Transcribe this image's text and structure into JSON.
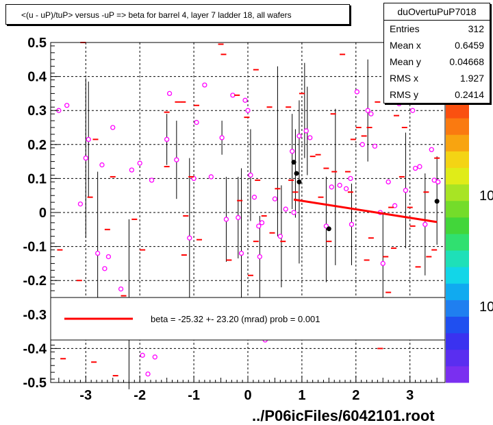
{
  "title": "<(u - uP)/tuP> versus  -uP => beta for barrel 4, layer 7 ladder 18, all wafers",
  "stats": {
    "name": "duOvertuPuP7018",
    "rows": [
      {
        "label": "Entries",
        "value": "312"
      },
      {
        "label": "Mean x",
        "value": "0.6459"
      },
      {
        "label": "Mean y",
        "value": "0.04668"
      },
      {
        "label": "RMS x",
        "value": "1.927"
      },
      {
        "label": "RMS y",
        "value": "0.2414"
      }
    ]
  },
  "footer": "../P06icFiles/6042101.root",
  "legend": {
    "text": "beta =  -25.32 +- 23.20 (mrad) prob = 0.001",
    "line_color": "#ff0000"
  },
  "palette_labels": [
    "10",
    "10"
  ],
  "colors": {
    "marker": "#ff00ff",
    "dash": "#ff0000",
    "profile": "#000000",
    "fit": "#ff0000"
  },
  "chart_data": {
    "type": "scatter",
    "xlim": [
      -3.65,
      3.65
    ],
    "ylim": [
      -0.5,
      0.5
    ],
    "x_ticks": [
      -3,
      -2,
      -1,
      0,
      1,
      2,
      3
    ],
    "x_tick_labels": [
      "-3",
      "-2",
      "-1",
      "0",
      "1",
      "2",
      "3"
    ],
    "y_ticks": [
      -0.5,
      -0.4,
      -0.3,
      -0.2,
      -0.1,
      0,
      0.1,
      0.2,
      0.3,
      0.4,
      0.5
    ],
    "y_tick_labels": [
      "-0.5",
      "-0.4",
      "-0.3",
      "-0.2",
      "-0.1",
      "0",
      "0.1",
      "0.2",
      "0.3",
      "0.4",
      "0.5"
    ],
    "grid": true,
    "fit_line": {
      "x": [
        0.85,
        3.5
      ],
      "y": [
        0.038,
        -0.028
      ]
    },
    "series": [
      {
        "kind": "circles",
        "points": [
          [
            -3.5,
            0.3
          ],
          [
            -3.35,
            0.315
          ],
          [
            -3.1,
            0.025
          ],
          [
            -3.0,
            0.16
          ],
          [
            -2.95,
            0.215
          ],
          [
            -2.78,
            -0.12
          ],
          [
            -2.7,
            0.14
          ],
          [
            -2.65,
            -0.165
          ],
          [
            -2.58,
            -0.13
          ],
          [
            -2.5,
            0.25
          ],
          [
            -2.35,
            -0.225
          ],
          [
            -2.15,
            0.125
          ],
          [
            -2.0,
            0.145
          ],
          [
            -1.95,
            -0.42
          ],
          [
            -1.85,
            -0.475
          ],
          [
            -1.78,
            0.095
          ],
          [
            -1.72,
            -0.425
          ],
          [
            -1.5,
            0.215
          ],
          [
            -1.45,
            0.35
          ],
          [
            -1.32,
            0.155
          ],
          [
            -1.08,
            -0.075
          ],
          [
            -1.0,
            0.1
          ],
          [
            -0.95,
            0.265
          ],
          [
            -0.8,
            0.375
          ],
          [
            -0.68,
            0.105
          ],
          [
            -0.48,
            0.22
          ],
          [
            -0.4,
            -0.02
          ],
          [
            -0.28,
            0.345
          ],
          [
            -0.18,
            -0.015
          ],
          [
            -0.12,
            -0.12
          ],
          [
            -0.05,
            0.33
          ],
          [
            0.0,
            0.3
          ],
          [
            0.05,
            0.11
          ],
          [
            0.12,
            0.045
          ],
          [
            0.2,
            -0.04
          ],
          [
            0.22,
            -0.13
          ],
          [
            0.26,
            -0.03
          ],
          [
            0.32,
            -0.375
          ],
          [
            0.5,
            0.04
          ],
          [
            0.6,
            -0.07
          ],
          [
            0.7,
            0.01
          ],
          [
            0.82,
            0.18
          ],
          [
            0.85,
            0.0
          ],
          [
            0.95,
            0.225
          ],
          [
            1.08,
            0.24
          ],
          [
            1.15,
            0.22
          ],
          [
            1.45,
            -0.04
          ],
          [
            1.55,
            0.075
          ],
          [
            1.7,
            0.08
          ],
          [
            1.82,
            0.07
          ],
          [
            1.9,
            0.1
          ],
          [
            1.92,
            -0.035
          ],
          [
            2.02,
            0.355
          ],
          [
            2.12,
            0.2
          ],
          [
            2.22,
            0.3
          ],
          [
            2.28,
            0.29
          ],
          [
            2.35,
            0.195
          ],
          [
            2.45,
            0.0
          ],
          [
            2.5,
            -0.15
          ],
          [
            2.6,
            0.09
          ],
          [
            2.72,
            0.02
          ],
          [
            2.8,
            0.32
          ],
          [
            2.92,
            0.065
          ],
          [
            3.05,
            0.3
          ],
          [
            3.1,
            0.13
          ],
          [
            3.18,
            0.135
          ],
          [
            3.28,
            -0.035
          ],
          [
            3.4,
            0.185
          ],
          [
            3.45,
            0.095
          ],
          [
            3.52,
            0.09
          ]
        ]
      },
      {
        "kind": "dashes",
        "points": [
          [
            -3.48,
            -0.11
          ],
          [
            -3.42,
            -0.43
          ],
          [
            -3.12,
            -0.2
          ],
          [
            -3.05,
            0.5
          ],
          [
            -2.92,
            0.045
          ],
          [
            -2.85,
            -0.44
          ],
          [
            -2.82,
            0.215
          ],
          [
            -2.6,
            -0.05
          ],
          [
            -2.5,
            0.105
          ],
          [
            -2.45,
            -0.48
          ],
          [
            -2.3,
            -0.245
          ],
          [
            -2.1,
            -0.02
          ],
          [
            -1.95,
            -0.11
          ],
          [
            -1.9,
            -0.355
          ],
          [
            -1.5,
            0.135
          ],
          [
            -1.5,
            0.295
          ],
          [
            -1.3,
            0.325
          ],
          [
            -1.2,
            0.325
          ],
          [
            -1.18,
            -0.125
          ],
          [
            -1.15,
            -0.01
          ],
          [
            -1.05,
            0.105
          ],
          [
            -0.95,
            0.315
          ],
          [
            -0.9,
            -0.08
          ],
          [
            -0.5,
            0.495
          ],
          [
            -0.45,
            0.465
          ],
          [
            -0.35,
            -0.14
          ],
          [
            -0.2,
            0.345
          ],
          [
            -0.15,
            0.035
          ],
          [
            -0.12,
            -0.36
          ],
          [
            -0.02,
            0.28
          ],
          [
            0.05,
            -0.185
          ],
          [
            0.15,
            -0.085
          ],
          [
            0.15,
            0.42
          ],
          [
            0.18,
            0.095
          ],
          [
            0.3,
            -0.01
          ],
          [
            0.4,
            0.31
          ],
          [
            0.45,
            -0.06
          ],
          [
            0.55,
            0.07
          ],
          [
            0.65,
            -0.085
          ],
          [
            0.75,
            0.31
          ],
          [
            0.8,
            0.095
          ],
          [
            0.88,
            0.06
          ],
          [
            1.0,
            0.35
          ],
          [
            1.2,
            0.165
          ],
          [
            1.3,
            0.17
          ],
          [
            1.35,
            0.045
          ],
          [
            1.45,
            0.13
          ],
          [
            1.5,
            -0.085
          ],
          [
            1.58,
            0.29
          ],
          [
            1.6,
            0.12
          ],
          [
            1.75,
            0.465
          ],
          [
            1.85,
            0.12
          ],
          [
            1.9,
            0.06
          ],
          [
            1.95,
            0.215
          ],
          [
            2.05,
            0.25
          ],
          [
            2.15,
            0.225
          ],
          [
            2.2,
            -0.14
          ],
          [
            2.25,
            0.25
          ],
          [
            2.28,
            -0.075
          ],
          [
            2.4,
            0.325
          ],
          [
            2.45,
            -0.4
          ],
          [
            2.55,
            -0.13
          ],
          [
            2.6,
            -0.235
          ],
          [
            2.65,
            0.015
          ],
          [
            2.7,
            -0.105
          ],
          [
            2.75,
            0.285
          ],
          [
            2.85,
            0.105
          ],
          [
            2.9,
            0.25
          ],
          [
            3.0,
            0.015
          ],
          [
            3.05,
            -0.04
          ],
          [
            3.15,
            -0.16
          ],
          [
            3.2,
            0.32
          ],
          [
            3.3,
            0.06
          ],
          [
            3.35,
            -0.13
          ],
          [
            3.45,
            -0.11
          ],
          [
            3.5,
            0.16
          ]
        ]
      },
      {
        "kind": "profile",
        "points": [
          [
            -3.0,
            0.16,
            0.235
          ],
          [
            -2.95,
            0.215,
            0.17
          ],
          [
            -2.78,
            -0.12,
            0.24
          ],
          [
            -2.2,
            -0.27,
            0.25
          ],
          [
            -1.5,
            0.215,
            0.075
          ],
          [
            -1.32,
            0.155,
            0.115
          ],
          [
            -1.08,
            -0.075,
            0.235
          ],
          [
            -0.48,
            0.22,
            0.05
          ],
          [
            -0.4,
            -0.02,
            0.125
          ],
          [
            -0.18,
            -0.015,
            0.12
          ],
          [
            -0.12,
            -0.12,
            0.25
          ],
          [
            0.05,
            0.11,
            0.135
          ],
          [
            0.22,
            -0.13,
            0.12
          ],
          [
            0.55,
            0.18,
            0.25
          ],
          [
            0.62,
            -0.07,
            0.15
          ],
          [
            0.82,
            0.15,
            0.14
          ],
          [
            0.88,
            0.115,
            0.13
          ],
          [
            0.95,
            0.09,
            0.24
          ],
          [
            1.05,
            0.3,
            0.14
          ],
          [
            1.1,
            0.24,
            0.13
          ],
          [
            1.45,
            -0.05,
            0.155
          ],
          [
            1.62,
            0.075,
            0.23
          ],
          [
            1.92,
            -0.035,
            0.12
          ],
          [
            2.22,
            0.3,
            0.15
          ],
          [
            2.5,
            -0.15,
            0.15
          ],
          [
            2.92,
            0.065,
            0.17
          ],
          [
            3.28,
            -0.035,
            0.15
          ],
          [
            3.5,
            0.035,
            0.13
          ]
        ]
      },
      {
        "kind": "means",
        "points": [
          [
            0.85,
            0.148
          ],
          [
            0.9,
            0.115
          ],
          [
            0.95,
            0.09
          ],
          [
            1.5,
            -0.048
          ],
          [
            3.5,
            0.033
          ]
        ]
      }
    ]
  }
}
